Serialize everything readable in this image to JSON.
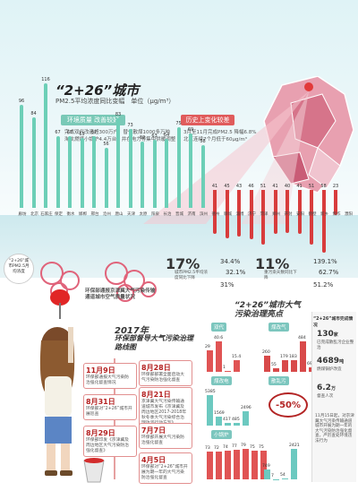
{
  "header": {
    "title": "“2+26”城市",
    "subtitle": "PM2.5平均浓度同比变幅",
    "unit": "单位（μg/m³）"
  },
  "left_tag": "环境质量 改善较好",
  "right_tag": "历史上变化较差",
  "left_note_1": "完成双代改造超300万户，替代散煤1000多万吨",
  "left_note_2": "淘汰燃煤小锅炉4.4万台，并在电力等集中供暖调整",
  "right_note_1": "3月至11月完成PM2.5 降幅6.8%",
  "right_note_2": "北京连续7个月低于60μg/m³",
  "chart_data": {
    "type": "bar",
    "series": [
      {
        "color": "#6ccfb7",
        "values": [
          96,
          84,
          116,
          67,
          67,
          65,
          67,
          56,
          83,
          73,
          62,
          63,
          64,
          75,
          69,
          58
        ]
      },
      {
        "color": "#d83c3c",
        "values": [
          41,
          45,
          43,
          46,
          51,
          41,
          40,
          41,
          51,
          58,
          23
        ]
      }
    ],
    "labels_g": [
      "96",
      "84",
      "116",
      "67",
      "67",
      "65",
      "67",
      "56",
      "83",
      "73",
      "62",
      "63",
      "64",
      "75",
      "69",
      "58"
    ],
    "labels_r": [
      "41",
      "45",
      "43",
      "46",
      "51",
      "41",
      "40",
      "41",
      "51",
      "58",
      "23"
    ],
    "cities": [
      "廊坊",
      "北京",
      "石家庄",
      "保定",
      "衡水",
      "邯郸",
      "邢台",
      "沧州",
      "唐山",
      "天津",
      "太原",
      "阳泉",
      "长治",
      "晋城",
      "济南",
      "滨州",
      "德州",
      "聊城",
      "淄博",
      "济宁",
      "菏泽",
      "郑州",
      "开封",
      "安阳",
      "鹤壁",
      "新乡",
      "焦作",
      "濮阳"
    ]
  },
  "bubble_tip": "“2+26”城市PM2.5月均浓度",
  "mid_label_1": "环保部通报京津冀大气污染传输通道城市空气质量状况",
  "mid_label_2": "同比变幅",
  "pct_17": "17%",
  "pct_11": "11%",
  "pct_17_note": "城市PM2.5平均浓度同比下降",
  "pct_11_note": "重污染天数同比下降",
  "pcts_a": [
    "34.4%",
    "32.1%",
    "31%"
  ],
  "pcts_b": [
    "139.1%",
    "62.7%",
    "51.2%"
  ],
  "timeline": {
    "title_1": "2017年",
    "title_2": "环保部督导大气污染治理路线图",
    "items": [
      {
        "date": "11月9日",
        "text": "环保部通报大气污染防治强化督查情况"
      },
      {
        "date": "8月28日",
        "text": "环保部部署全面启动大气污染防治强化督查"
      },
      {
        "date": "8月31日",
        "text": "环保部对“2+26”城市开展巡查"
      },
      {
        "date": "8月21日",
        "text": "京津冀大气污染传输通道城市发布《京津冀及周边地区2017-2018年秋冬季大气污染综合治理攻坚行动方案》"
      },
      {
        "date": "8月29日",
        "text": "环保部印发《京津冀及周边地区大气污染防治强化督查》"
      },
      {
        "date": "7月7日",
        "text": "环保部开展大气污染防治强化督查"
      },
      {
        "date": "4月5日",
        "text": "环保部对“2+26”城市开展为期一年的大气污染防治强化督查"
      }
    ]
  },
  "right_panel": {
    "title": "“2+26”城市大气污染治理亮点",
    "tags": [
      "双代",
      "煤改气",
      "煤改电",
      "散乱污",
      "小锅炉"
    ],
    "nums_a": [
      "29",
      "40.6",
      "1",
      "15.4"
    ],
    "nums_b": [
      "260",
      "55",
      "179",
      "183",
      "484",
      "69"
    ],
    "nums_c": [
      "5385",
      "1569",
      "417",
      "485",
      "2496"
    ],
    "big_pct": "-50%",
    "nums_d": [
      "73",
      "72",
      "74",
      "77",
      "79",
      "75",
      "75"
    ],
    "nums_e": [
      "749",
      "7",
      "54",
      "2421"
    ],
    "side_title": "“2+26”城市完成情况",
    "side_stats": [
      {
        "v": "130",
        "u": "家",
        "note": "已完成散乱污企业整治"
      },
      {
        "v": "4689",
        "u": "吨",
        "note": "燃煤锅炉改造"
      },
      {
        "v": "6.2",
        "u": "万",
        "note": "督查人次"
      }
    ],
    "side_note": "11月15日起，对京津冀大气污染传输通道城市开展为期一年的大气污染防治强化督查，严厉查处环境违法行为"
  }
}
